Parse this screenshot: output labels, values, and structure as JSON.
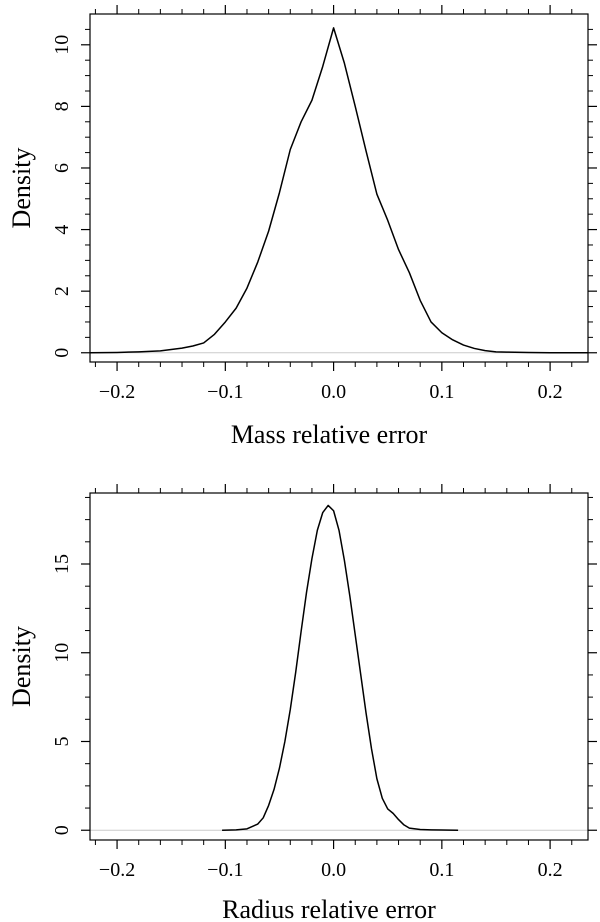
{
  "chart_data": [
    {
      "type": "line",
      "xlabel": "Mass relative error",
      "ylabel": "Density",
      "xlim": [
        -0.225,
        0.235
      ],
      "ylim": [
        -0.3,
        11.0
      ],
      "xticks": [
        -0.2,
        -0.1,
        0.0,
        0.1,
        0.2
      ],
      "xtick_labels": [
        "−0.2",
        "−0.1",
        "0.0",
        "0.1",
        "0.2"
      ],
      "yticks": [
        0,
        2,
        4,
        6,
        8,
        10
      ],
      "ytick_labels": [
        "0",
        "2",
        "4",
        "6",
        "8",
        "10"
      ],
      "baseline": 0,
      "grid": false,
      "legend": "none",
      "series": [
        {
          "x": [
            -0.225,
            -0.2,
            -0.18,
            -0.16,
            -0.14,
            -0.13,
            -0.12,
            -0.11,
            -0.1,
            -0.09,
            -0.08,
            -0.07,
            -0.06,
            -0.05,
            -0.04,
            -0.03,
            -0.02,
            -0.01,
            0.0,
            0.01,
            0.02,
            0.03,
            0.04,
            0.05,
            0.06,
            0.07,
            0.08,
            0.09,
            0.1,
            0.11,
            0.12,
            0.13,
            0.14,
            0.15,
            0.16,
            0.18,
            0.2,
            0.235
          ],
          "y": [
            0.0,
            0.01,
            0.03,
            0.06,
            0.15,
            0.22,
            0.32,
            0.6,
            1.0,
            1.45,
            2.1,
            2.95,
            3.95,
            5.2,
            6.6,
            7.5,
            8.2,
            9.3,
            10.55,
            9.4,
            8.0,
            6.55,
            5.15,
            4.3,
            3.35,
            2.6,
            1.7,
            1.0,
            0.65,
            0.42,
            0.25,
            0.14,
            0.07,
            0.03,
            0.02,
            0.01,
            0.0,
            0.0
          ]
        }
      ]
    },
    {
      "type": "line",
      "xlabel": "Radius relative error",
      "ylabel": "Density",
      "xlim": [
        -0.225,
        0.235
      ],
      "ylim": [
        -0.55,
        19.0
      ],
      "xticks": [
        -0.2,
        -0.1,
        0.0,
        0.1,
        0.2
      ],
      "xtick_labels": [
        "−0.2",
        "−0.1",
        "0.0",
        "0.1",
        "0.2"
      ],
      "yticks": [
        0,
        5,
        10,
        15
      ],
      "ytick_labels": [
        "0",
        "5",
        "10",
        "15"
      ],
      "baseline": 0,
      "grid": false,
      "legend": "none",
      "series": [
        {
          "x": [
            -0.103,
            -0.09,
            -0.08,
            -0.07,
            -0.065,
            -0.06,
            -0.055,
            -0.05,
            -0.045,
            -0.04,
            -0.035,
            -0.03,
            -0.025,
            -0.02,
            -0.015,
            -0.01,
            -0.005,
            0.0,
            0.005,
            0.01,
            0.015,
            0.02,
            0.025,
            0.03,
            0.035,
            0.04,
            0.045,
            0.05,
            0.055,
            0.06,
            0.065,
            0.07,
            0.08,
            0.09,
            0.1,
            0.115
          ],
          "y": [
            0.0,
            0.02,
            0.08,
            0.35,
            0.7,
            1.4,
            2.3,
            3.5,
            5.0,
            6.8,
            8.9,
            11.2,
            13.4,
            15.3,
            16.9,
            17.9,
            18.3,
            18.0,
            16.9,
            15.2,
            13.2,
            11.0,
            8.8,
            6.6,
            4.6,
            2.9,
            1.8,
            1.2,
            0.95,
            0.6,
            0.3,
            0.12,
            0.04,
            0.02,
            0.01,
            0.0
          ]
        }
      ]
    }
  ]
}
